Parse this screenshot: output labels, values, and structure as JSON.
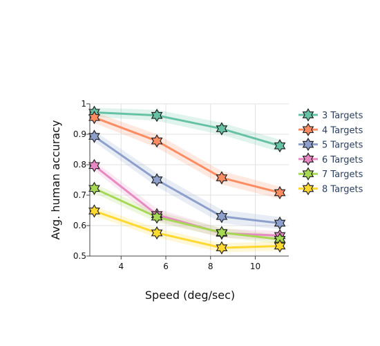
{
  "chart_data": {
    "type": "line",
    "xlabel": "Speed (deg/sec)",
    "ylabel": "Avg. human accuracy",
    "xlim": [
      2.6,
      11.5
    ],
    "ylim": [
      0.5,
      1.0
    ],
    "x_ticks": [
      4,
      6,
      8,
      10
    ],
    "y_ticks": [
      0.5,
      0.6,
      0.7,
      0.8,
      0.9,
      1.0
    ],
    "y_tick_labels": [
      "0.5",
      "0.6",
      "0.7",
      "0.8",
      "0.9",
      "1"
    ],
    "x_tick_labels": [
      "4",
      "6",
      "8",
      "10"
    ],
    "grid": true,
    "legend_placement": "right",
    "marker": "star",
    "x": [
      2.8,
      5.6,
      8.5,
      11.1
    ],
    "series": [
      {
        "name": "3 Targets",
        "color": "#66c2a5",
        "values": [
          0.972,
          0.962,
          0.918,
          0.862
        ],
        "band": [
          0.015,
          0.018,
          0.02,
          0.02
        ]
      },
      {
        "name": "4 Targets",
        "color": "#fc8d62",
        "values": [
          0.955,
          0.878,
          0.757,
          0.708
        ],
        "band": [
          0.018,
          0.022,
          0.022,
          0.02
        ]
      },
      {
        "name": "5 Targets",
        "color": "#8da0cb",
        "values": [
          0.893,
          0.75,
          0.63,
          0.608
        ],
        "band": [
          0.018,
          0.022,
          0.022,
          0.02
        ]
      },
      {
        "name": "6 Targets",
        "color": "#e78ac3",
        "values": [
          0.797,
          0.636,
          0.575,
          0.567
        ],
        "band": [
          0.015,
          0.02,
          0.015,
          0.015
        ]
      },
      {
        "name": "7 Targets",
        "color": "#a6d854",
        "values": [
          0.722,
          0.628,
          0.577,
          0.555
        ],
        "band": [
          0.015,
          0.018,
          0.015,
          0.015
        ]
      },
      {
        "name": "8 Targets",
        "color": "#ffd92f",
        "values": [
          0.648,
          0.576,
          0.527,
          0.533
        ],
        "band": [
          0.015,
          0.015,
          0.015,
          0.015
        ]
      }
    ]
  }
}
